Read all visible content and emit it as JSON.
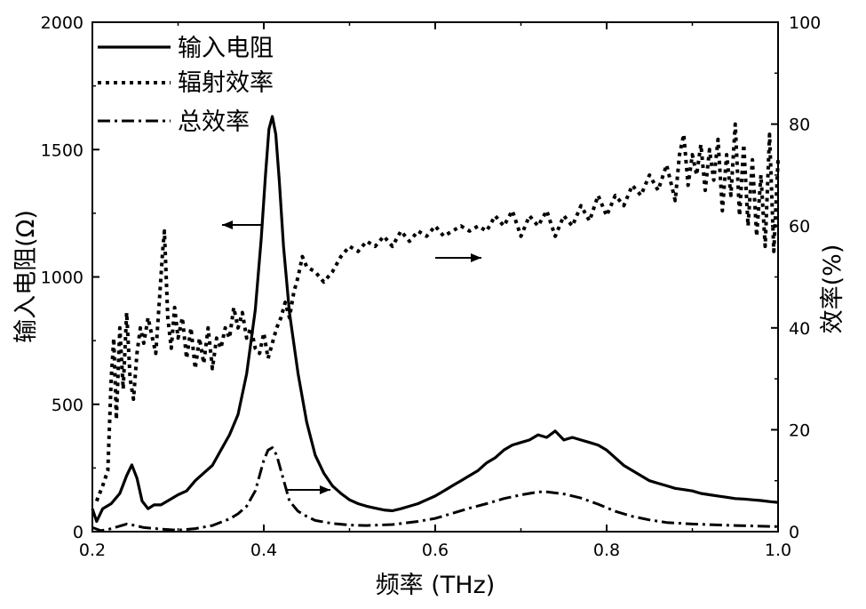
{
  "chart_data": {
    "type": "line",
    "xlabel": "频率 (THz)",
    "ylabel_left": "输入电阻(Ω)",
    "ylabel_right": "效率(%)",
    "xlim": [
      0.2,
      1.0
    ],
    "ylim_left": [
      0,
      2000
    ],
    "ylim_right": [
      0,
      100
    ],
    "x_ticks": [
      "0.2",
      "0.4",
      "0.6",
      "0.8",
      "1.0"
    ],
    "y_left_ticks": [
      "0",
      "500",
      "1000",
      "1500",
      "2000"
    ],
    "y_right_ticks": [
      "0",
      "20",
      "40",
      "60",
      "80",
      "100"
    ],
    "legend_position": "top-left",
    "series": [
      {
        "name": "输入电阻",
        "axis": "left",
        "style": "solid",
        "points": [
          [
            0.2,
            90
          ],
          [
            0.205,
            40
          ],
          [
            0.212,
            90
          ],
          [
            0.222,
            110
          ],
          [
            0.232,
            150
          ],
          [
            0.24,
            220
          ],
          [
            0.246,
            262
          ],
          [
            0.252,
            210
          ],
          [
            0.258,
            120
          ],
          [
            0.265,
            90
          ],
          [
            0.272,
            105
          ],
          [
            0.28,
            105
          ],
          [
            0.29,
            125
          ],
          [
            0.3,
            145
          ],
          [
            0.31,
            160
          ],
          [
            0.32,
            200
          ],
          [
            0.33,
            230
          ],
          [
            0.34,
            260
          ],
          [
            0.35,
            320
          ],
          [
            0.36,
            380
          ],
          [
            0.37,
            460
          ],
          [
            0.38,
            620
          ],
          [
            0.39,
            870
          ],
          [
            0.397,
            1150
          ],
          [
            0.402,
            1400
          ],
          [
            0.406,
            1580
          ],
          [
            0.41,
            1630
          ],
          [
            0.414,
            1560
          ],
          [
            0.418,
            1380
          ],
          [
            0.423,
            1120
          ],
          [
            0.43,
            860
          ],
          [
            0.44,
            620
          ],
          [
            0.45,
            430
          ],
          [
            0.46,
            300
          ],
          [
            0.47,
            230
          ],
          [
            0.48,
            180
          ],
          [
            0.49,
            150
          ],
          [
            0.5,
            125
          ],
          [
            0.51,
            110
          ],
          [
            0.52,
            100
          ],
          [
            0.53,
            92
          ],
          [
            0.54,
            85
          ],
          [
            0.55,
            82
          ],
          [
            0.56,
            90
          ],
          [
            0.57,
            100
          ],
          [
            0.58,
            110
          ],
          [
            0.59,
            125
          ],
          [
            0.6,
            140
          ],
          [
            0.61,
            160
          ],
          [
            0.62,
            180
          ],
          [
            0.63,
            200
          ],
          [
            0.64,
            220
          ],
          [
            0.65,
            240
          ],
          [
            0.66,
            270
          ],
          [
            0.67,
            290
          ],
          [
            0.68,
            320
          ],
          [
            0.69,
            340
          ],
          [
            0.7,
            350
          ],
          [
            0.71,
            360
          ],
          [
            0.72,
            380
          ],
          [
            0.73,
            370
          ],
          [
            0.74,
            395
          ],
          [
            0.75,
            360
          ],
          [
            0.76,
            370
          ],
          [
            0.77,
            360
          ],
          [
            0.78,
            350
          ],
          [
            0.79,
            340
          ],
          [
            0.8,
            320
          ],
          [
            0.81,
            290
          ],
          [
            0.82,
            260
          ],
          [
            0.83,
            240
          ],
          [
            0.84,
            220
          ],
          [
            0.85,
            200
          ],
          [
            0.86,
            190
          ],
          [
            0.87,
            180
          ],
          [
            0.88,
            170
          ],
          [
            0.89,
            165
          ],
          [
            0.9,
            160
          ],
          [
            0.91,
            150
          ],
          [
            0.92,
            145
          ],
          [
            0.93,
            140
          ],
          [
            0.94,
            135
          ],
          [
            0.95,
            130
          ],
          [
            0.96,
            128
          ],
          [
            0.97,
            125
          ],
          [
            0.98,
            122
          ],
          [
            0.99,
            118
          ],
          [
            1.0,
            115
          ]
        ]
      },
      {
        "name": "辐射效率",
        "axis": "right",
        "style": "dotted",
        "points": [
          [
            0.205,
            6
          ],
          [
            0.212,
            9
          ],
          [
            0.218,
            12
          ],
          [
            0.222,
            30
          ],
          [
            0.225,
            38
          ],
          [
            0.228,
            22
          ],
          [
            0.232,
            40
          ],
          [
            0.236,
            28
          ],
          [
            0.24,
            43
          ],
          [
            0.244,
            30
          ],
          [
            0.248,
            26
          ],
          [
            0.252,
            35
          ],
          [
            0.256,
            40
          ],
          [
            0.26,
            37
          ],
          [
            0.265,
            42
          ],
          [
            0.27,
            38
          ],
          [
            0.274,
            35
          ],
          [
            0.278,
            45
          ],
          [
            0.282,
            55
          ],
          [
            0.284,
            59
          ],
          [
            0.288,
            42
          ],
          [
            0.292,
            36
          ],
          [
            0.296,
            44
          ],
          [
            0.3,
            38
          ],
          [
            0.305,
            42
          ],
          [
            0.31,
            34
          ],
          [
            0.315,
            40
          ],
          [
            0.32,
            32
          ],
          [
            0.325,
            38
          ],
          [
            0.33,
            33
          ],
          [
            0.335,
            40
          ],
          [
            0.34,
            32
          ],
          [
            0.345,
            38
          ],
          [
            0.35,
            36
          ],
          [
            0.355,
            40
          ],
          [
            0.36,
            38
          ],
          [
            0.365,
            44
          ],
          [
            0.37,
            40
          ],
          [
            0.375,
            43
          ],
          [
            0.38,
            38
          ],
          [
            0.385,
            40
          ],
          [
            0.39,
            36
          ],
          [
            0.395,
            35
          ],
          [
            0.4,
            39
          ],
          [
            0.405,
            34
          ],
          [
            0.41,
            37
          ],
          [
            0.415,
            40
          ],
          [
            0.42,
            42
          ],
          [
            0.425,
            45
          ],
          [
            0.43,
            42
          ],
          [
            0.435,
            47
          ],
          [
            0.44,
            50
          ],
          [
            0.445,
            54
          ],
          [
            0.45,
            52
          ],
          [
            0.46,
            51
          ],
          [
            0.47,
            49
          ],
          [
            0.48,
            51
          ],
          [
            0.49,
            54
          ],
          [
            0.5,
            56
          ],
          [
            0.51,
            55
          ],
          [
            0.52,
            57
          ],
          [
            0.53,
            56
          ],
          [
            0.54,
            58
          ],
          [
            0.55,
            56
          ],
          [
            0.56,
            59
          ],
          [
            0.57,
            57
          ],
          [
            0.58,
            59
          ],
          [
            0.59,
            58
          ],
          [
            0.6,
            60
          ],
          [
            0.61,
            58
          ],
          [
            0.62,
            59
          ],
          [
            0.63,
            60
          ],
          [
            0.64,
            59
          ],
          [
            0.65,
            60
          ],
          [
            0.66,
            59
          ],
          [
            0.67,
            62
          ],
          [
            0.68,
            60
          ],
          [
            0.69,
            63
          ],
          [
            0.7,
            58
          ],
          [
            0.71,
            62
          ],
          [
            0.72,
            60
          ],
          [
            0.73,
            63
          ],
          [
            0.74,
            58
          ],
          [
            0.75,
            62
          ],
          [
            0.76,
            60
          ],
          [
            0.77,
            64
          ],
          [
            0.78,
            61
          ],
          [
            0.79,
            66
          ],
          [
            0.8,
            62
          ],
          [
            0.81,
            66
          ],
          [
            0.82,
            64
          ],
          [
            0.83,
            68
          ],
          [
            0.84,
            66
          ],
          [
            0.85,
            70
          ],
          [
            0.86,
            67
          ],
          [
            0.87,
            72
          ],
          [
            0.88,
            65
          ],
          [
            0.885,
            74
          ],
          [
            0.89,
            78
          ],
          [
            0.895,
            68
          ],
          [
            0.9,
            74
          ],
          [
            0.905,
            70
          ],
          [
            0.91,
            76
          ],
          [
            0.915,
            67
          ],
          [
            0.92,
            75
          ],
          [
            0.925,
            69
          ],
          [
            0.93,
            77
          ],
          [
            0.935,
            63
          ],
          [
            0.94,
            74
          ],
          [
            0.945,
            66
          ],
          [
            0.95,
            80
          ],
          [
            0.955,
            62
          ],
          [
            0.96,
            76
          ],
          [
            0.965,
            60
          ],
          [
            0.97,
            73
          ],
          [
            0.975,
            58
          ],
          [
            0.98,
            70
          ],
          [
            0.985,
            56
          ],
          [
            0.99,
            78
          ],
          [
            0.995,
            55
          ],
          [
            1.0,
            73
          ]
        ]
      },
      {
        "name": "总效率",
        "axis": "right",
        "style": "dashdot",
        "points": [
          [
            0.2,
            0.8
          ],
          [
            0.21,
            0.2
          ],
          [
            0.22,
            0.5
          ],
          [
            0.24,
            1.5
          ],
          [
            0.25,
            1.2
          ],
          [
            0.26,
            0.8
          ],
          [
            0.28,
            0.5
          ],
          [
            0.3,
            0.3
          ],
          [
            0.32,
            0.6
          ],
          [
            0.34,
            1.2
          ],
          [
            0.36,
            2.5
          ],
          [
            0.37,
            3.5
          ],
          [
            0.38,
            5
          ],
          [
            0.39,
            8
          ],
          [
            0.395,
            11
          ],
          [
            0.4,
            14
          ],
          [
            0.405,
            16
          ],
          [
            0.41,
            16.5
          ],
          [
            0.415,
            15
          ],
          [
            0.42,
            12
          ],
          [
            0.425,
            9
          ],
          [
            0.43,
            6
          ],
          [
            0.44,
            4
          ],
          [
            0.45,
            3
          ],
          [
            0.46,
            2.2
          ],
          [
            0.48,
            1.6
          ],
          [
            0.5,
            1.3
          ],
          [
            0.52,
            1.2
          ],
          [
            0.55,
            1.4
          ],
          [
            0.58,
            2
          ],
          [
            0.6,
            2.6
          ],
          [
            0.62,
            3.6
          ],
          [
            0.64,
            4.6
          ],
          [
            0.66,
            5.5
          ],
          [
            0.68,
            6.5
          ],
          [
            0.7,
            7.2
          ],
          [
            0.72,
            7.8
          ],
          [
            0.73,
            7.8
          ],
          [
            0.75,
            7.4
          ],
          [
            0.77,
            6.6
          ],
          [
            0.79,
            5.4
          ],
          [
            0.81,
            4
          ],
          [
            0.83,
            3
          ],
          [
            0.85,
            2.3
          ],
          [
            0.87,
            1.8
          ],
          [
            0.9,
            1.5
          ],
          [
            0.95,
            1.2
          ],
          [
            1.0,
            1.0
          ]
        ]
      }
    ]
  }
}
